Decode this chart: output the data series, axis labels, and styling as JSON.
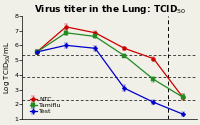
{
  "title": "Virus titer in the Lung: TCID$_{50}$",
  "ylabel": "Log TCID$_{50}$/mL",
  "x": [
    1,
    2,
    3,
    4,
    5,
    6
  ],
  "ntc_y": [
    5.55,
    7.25,
    6.85,
    5.8,
    5.1,
    2.5
  ],
  "tamiflu_y": [
    5.55,
    6.85,
    6.6,
    5.3,
    3.7,
    2.5
  ],
  "test_y": [
    5.55,
    6.0,
    5.8,
    3.1,
    2.15,
    1.35
  ],
  "ntc_err": [
    0.12,
    0.18,
    0.12,
    0.12,
    0.1,
    0.18
  ],
  "tamiflu_err": [
    0.12,
    0.18,
    0.12,
    0.12,
    0.15,
    0.18
  ],
  "test_err": [
    0.12,
    0.18,
    0.18,
    0.22,
    0.12,
    0.12
  ],
  "ntc_color": "#cc0000",
  "tamiflu_color": "#228B22",
  "test_color": "#0000cc",
  "ylim": [
    1,
    8
  ],
  "yticks": [
    1,
    2,
    3,
    4,
    5,
    6,
    7,
    8
  ],
  "hlines": [
    2.33,
    3.83,
    5.33
  ],
  "vline_x": 5.5,
  "bg_color": "#f0efe8",
  "title_fontsize": 6.5,
  "label_fontsize": 5.0,
  "tick_fontsize": 4.5,
  "legend_fontsize": 4.5
}
